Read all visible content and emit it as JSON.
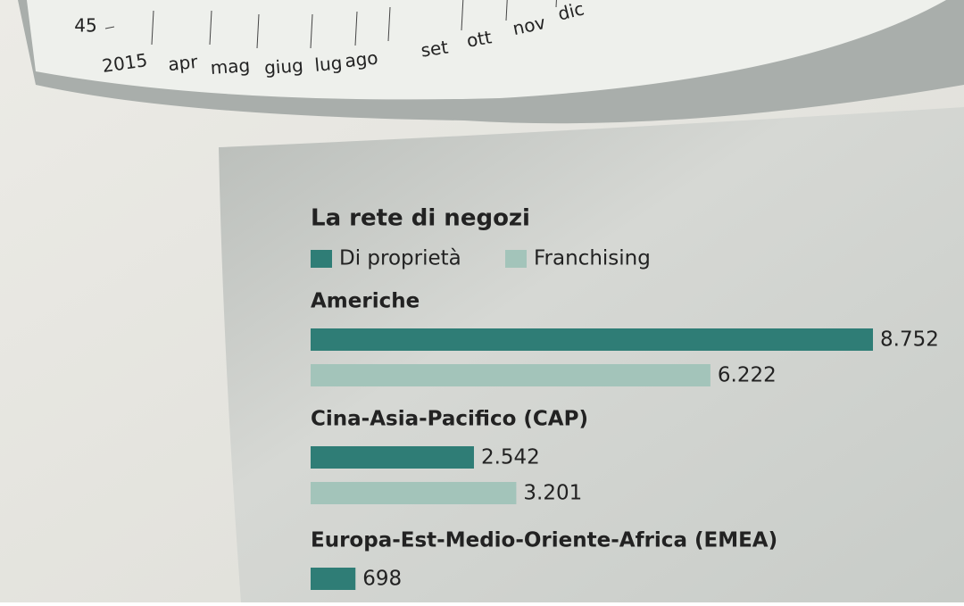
{
  "chart_data": [
    {
      "type": "line",
      "categories": [
        "2015",
        "apr",
        "mag",
        "giug",
        "lug",
        "ago",
        "set",
        "ott",
        "nov",
        "dic"
      ],
      "yticks": [
        45
      ]
    },
    {
      "type": "barh",
      "title": "La rete di negozi",
      "categories": [
        "Americhe",
        "Cina-Asia-Pacifico (CAP)",
        "Europa-Est-Medio-Oriente-Africa (EMEA)"
      ],
      "series": [
        {
          "name": "Di proprietà",
          "color": "#2f7d76",
          "values": [
            8752,
            2542,
            698
          ],
          "value_labels": [
            "8.752",
            "2.542",
            "698"
          ]
        },
        {
          "name": "Franchising",
          "color": "#a3c4ba",
          "values": [
            6222,
            3201,
            null
          ],
          "value_labels": [
            "6.222",
            "3.201",
            null
          ]
        }
      ]
    }
  ]
}
